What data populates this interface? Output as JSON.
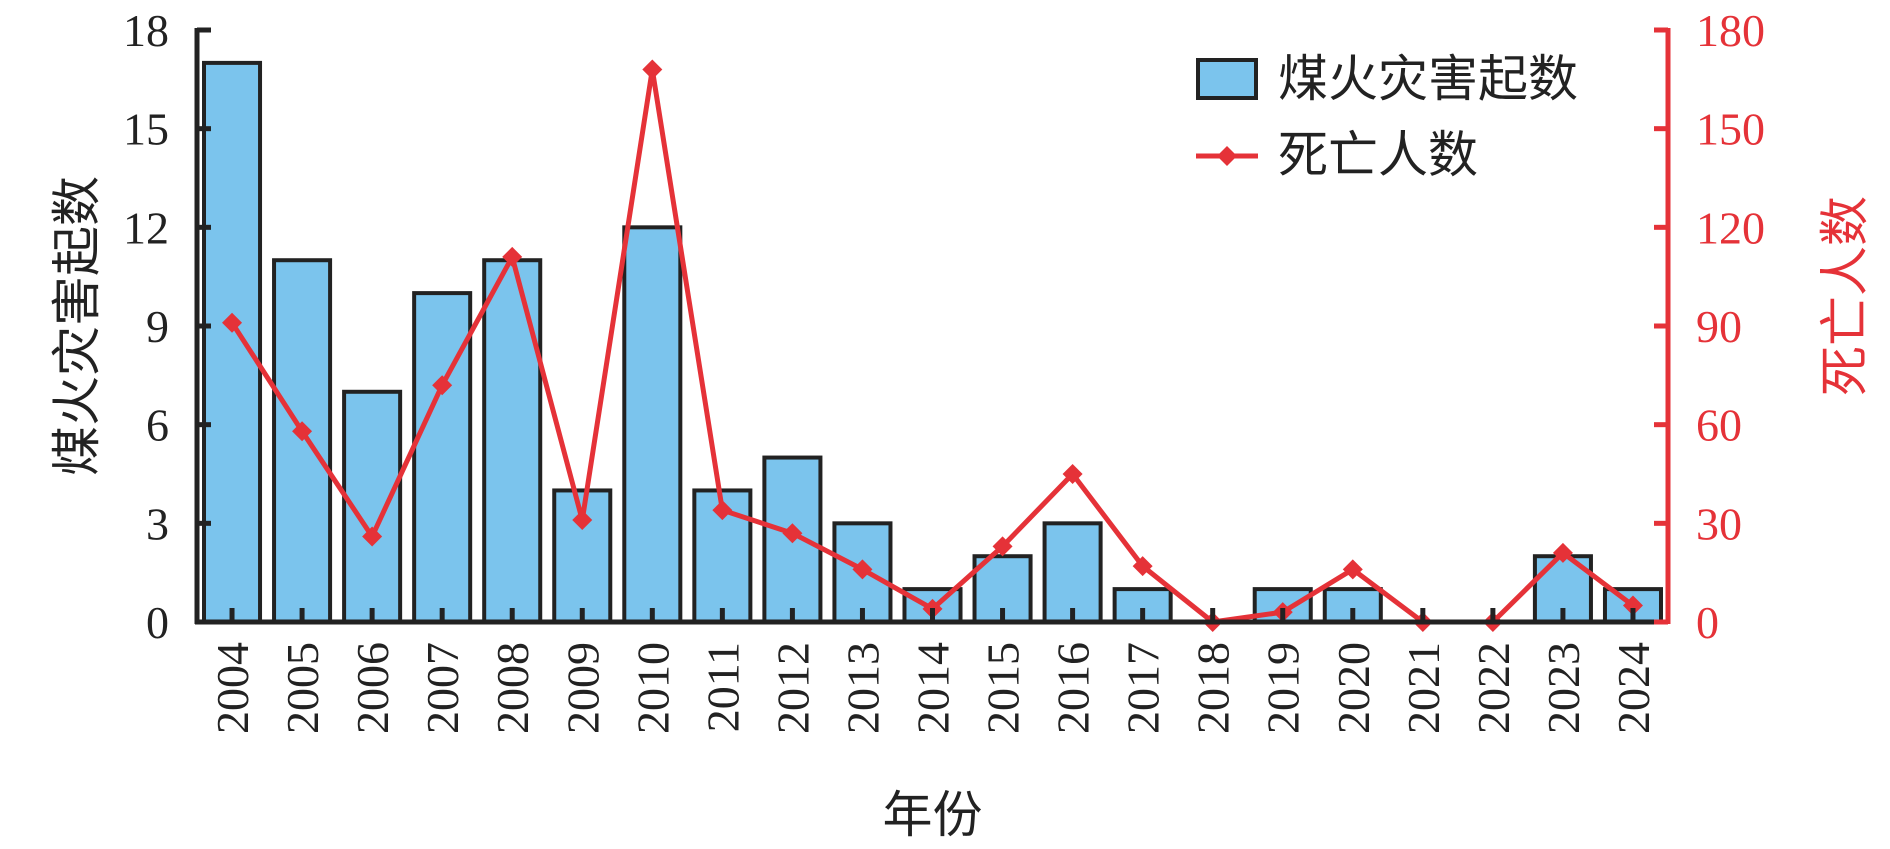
{
  "chart_data": {
    "type": "bar+line",
    "categories": [
      "2004",
      "2005",
      "2006",
      "2007",
      "2008",
      "2009",
      "2010",
      "2011",
      "2012",
      "2013",
      "2014",
      "2015",
      "2016",
      "2017",
      "2018",
      "2019",
      "2020",
      "2021",
      "2022",
      "2023",
      "2024"
    ],
    "series": [
      {
        "name": "煤火灾害起数",
        "type": "bar",
        "axis": "left",
        "values": [
          17,
          11,
          7,
          10,
          11,
          4,
          12,
          4,
          5,
          3,
          1,
          2,
          3,
          1,
          0,
          1,
          1,
          0,
          0,
          2,
          1
        ]
      },
      {
        "name": "死亡人数",
        "type": "line",
        "axis": "right",
        "values": [
          91,
          58,
          26,
          72,
          111,
          31,
          168,
          34,
          27,
          16,
          4,
          23,
          45,
          17,
          0,
          3,
          16,
          0,
          0,
          21,
          5
        ]
      }
    ],
    "xlabel": "年份",
    "ylabel_left": "煤火灾害起数",
    "ylabel_right": "死亡人数",
    "ylim_left": [
      0,
      18
    ],
    "ylim_right": [
      0,
      180
    ],
    "yticks_left": [
      "0",
      "3",
      "6",
      "9",
      "12",
      "15",
      "18"
    ],
    "yticks_right": [
      "0",
      "30",
      "60",
      "90",
      "120",
      "150",
      "180"
    ],
    "legend_position": "top-right",
    "grid": false,
    "colors": {
      "bar_fill": "#7bc4ed",
      "bar_stroke": "#222222",
      "line": "#e53238",
      "right_axis": "#e53238",
      "left_axis": "#222222"
    }
  }
}
